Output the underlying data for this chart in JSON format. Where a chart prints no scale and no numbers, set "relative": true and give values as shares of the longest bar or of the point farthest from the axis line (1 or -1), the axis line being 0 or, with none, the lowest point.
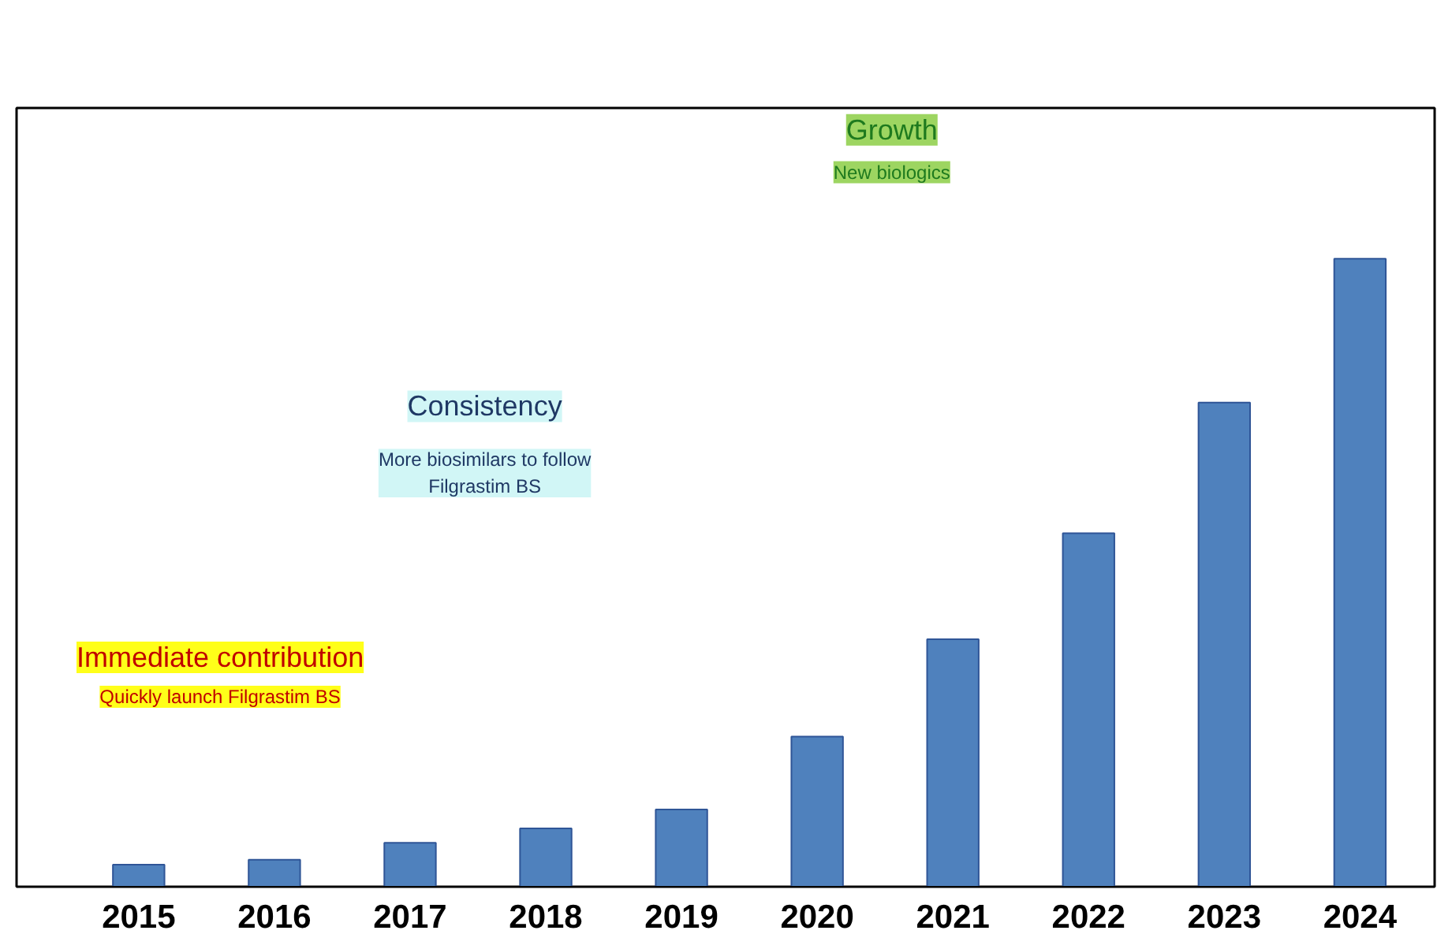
{
  "chart_data": {
    "type": "bar",
    "relative": true,
    "categories": [
      "2015",
      "2016",
      "2017",
      "2018",
      "2019",
      "2020",
      "2021",
      "2022",
      "2023",
      "2024"
    ],
    "values": [
      0.035,
      0.043,
      0.07,
      0.093,
      0.123,
      0.239,
      0.394,
      0.563,
      0.771,
      1
    ],
    "color": "#4f81bd",
    "annotations": [
      "Growth",
      "New biologics",
      "Consistency",
      "More biosimilars to follow\nFilgrastim BS",
      "Immediate contribution",
      "Quickly launch Filgrastim BS"
    ],
    "grid": false
  }
}
